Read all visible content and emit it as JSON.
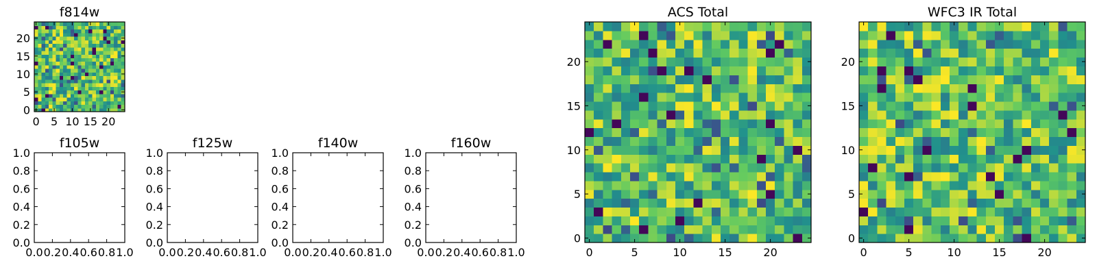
{
  "chart_data": [
    {
      "id": "f814w",
      "type": "heatmap",
      "title": "f814w",
      "cmap": "viridis",
      "grid": "25x25 random values",
      "seed": 814,
      "xlim": [
        -0.5,
        24.5
      ],
      "ylim": [
        -0.5,
        24.5
      ],
      "xticks": [
        0,
        5,
        10,
        15,
        20
      ],
      "yticks": [
        0,
        5,
        10,
        15,
        20
      ],
      "xticklabels": [
        "0",
        "5",
        "10",
        "15",
        "20"
      ],
      "yticklabels": [
        "0",
        "5",
        "10",
        "15",
        "20"
      ]
    },
    {
      "id": "f105w",
      "type": "empty",
      "title": "f105w",
      "xlim": [
        0,
        1
      ],
      "ylim": [
        0,
        1
      ],
      "xticks": [
        0,
        0.2,
        0.4,
        0.6,
        0.8,
        1.0
      ],
      "yticks": [
        0,
        0.2,
        0.4,
        0.6,
        0.8,
        1.0
      ],
      "xticklabels": [
        "0.0",
        "0.2",
        "0.4",
        "0.6",
        "0.8",
        "1.0"
      ],
      "yticklabels": [
        "0.0",
        "0.2",
        "0.4",
        "0.6",
        "0.8",
        "1.0"
      ]
    },
    {
      "id": "f125w",
      "type": "empty",
      "title": "f125w",
      "xlim": [
        0,
        1
      ],
      "ylim": [
        0,
        1
      ],
      "xticks": [
        0,
        0.2,
        0.4,
        0.6,
        0.8,
        1.0
      ],
      "yticks": [
        0,
        0.2,
        0.4,
        0.6,
        0.8,
        1.0
      ],
      "xticklabels": [
        "0.0",
        "0.2",
        "0.4",
        "0.6",
        "0.8",
        "1.0"
      ],
      "yticklabels": [
        "0.0",
        "0.2",
        "0.4",
        "0.6",
        "0.8",
        "1.0"
      ]
    },
    {
      "id": "f140w",
      "type": "empty",
      "title": "f140w",
      "xlim": [
        0,
        1
      ],
      "ylim": [
        0,
        1
      ],
      "xticks": [
        0,
        0.2,
        0.4,
        0.6,
        0.8,
        1.0
      ],
      "yticks": [
        0,
        0.2,
        0.4,
        0.6,
        0.8,
        1.0
      ],
      "xticklabels": [
        "0.0",
        "0.2",
        "0.4",
        "0.6",
        "0.8",
        "1.0"
      ],
      "yticklabels": [
        "0.0",
        "0.2",
        "0.4",
        "0.6",
        "0.8",
        "1.0"
      ]
    },
    {
      "id": "f160w",
      "type": "empty",
      "title": "f160w",
      "xlim": [
        0,
        1
      ],
      "ylim": [
        0,
        1
      ],
      "xticks": [
        0,
        0.2,
        0.4,
        0.6,
        0.8,
        1.0
      ],
      "yticks": [
        0,
        0.2,
        0.4,
        0.6,
        0.8,
        1.0
      ],
      "xticklabels": [
        "0.0",
        "0.2",
        "0.4",
        "0.6",
        "0.8",
        "1.0"
      ],
      "yticklabels": [
        "0.0",
        "0.2",
        "0.4",
        "0.6",
        "0.8",
        "1.0"
      ]
    },
    {
      "id": "acs-total",
      "type": "heatmap",
      "title": "ACS Total",
      "cmap": "viridis",
      "grid": "25x25 random values",
      "seed": 1717,
      "xlim": [
        -0.5,
        24.5
      ],
      "ylim": [
        -0.5,
        24.5
      ],
      "xticks": [
        0,
        5,
        10,
        15,
        20
      ],
      "yticks": [
        0,
        5,
        10,
        15,
        20
      ],
      "xticklabels": [
        "0",
        "5",
        "10",
        "15",
        "20"
      ],
      "yticklabels": [
        "0",
        "5",
        "10",
        "15",
        "20"
      ]
    },
    {
      "id": "wfc3-ir-total",
      "type": "heatmap",
      "title": "WFC3 IR Total",
      "cmap": "viridis",
      "grid": "25x25 random values",
      "seed": 3030,
      "xlim": [
        -0.5,
        24.5
      ],
      "ylim": [
        -0.5,
        24.5
      ],
      "xticks": [
        0,
        5,
        10,
        15,
        20
      ],
      "yticks": [
        0,
        5,
        10,
        15,
        20
      ],
      "xticklabels": [
        "0",
        "5",
        "10",
        "15",
        "20"
      ],
      "yticklabels": [
        "0",
        "5",
        "10",
        "15",
        "20"
      ]
    }
  ],
  "colors": {
    "viridis": [
      "#440154",
      "#3b528b",
      "#21918c",
      "#5ec962",
      "#fde725"
    ],
    "axis": "#000000",
    "background": "#ffffff"
  }
}
